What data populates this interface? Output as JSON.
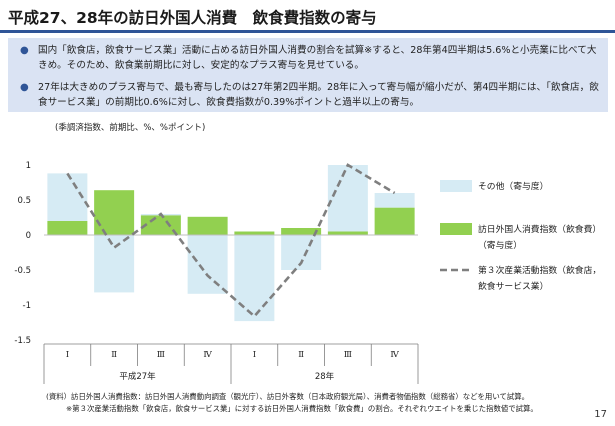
{
  "slide": {
    "title": "平成27、28年の訪日外国人消費　飲食費指数の寄与",
    "bullets": [
      "国内「飲食店，飲食サービス業」活動に占める訪日外国人消費の割合を試算※すると、28年第4四半期は5.6%と小売業に比べて大きめ。そのため、飲食業前期比に対し、安定的なプラス寄与を見せている。",
      "27年は大きめのプラス寄与で、最も寄与したのは27年第2四半期。28年に入って寄与幅が縮小だが、第4四半期には、「飲食店，飲食サービス業」の前期比0.6%に対し、飲食費指数が0.39%ポイントと過半以上の寄与。"
    ],
    "notes": [
      "(資料）訪日外国人消費指数：訪日外国人消費動向調査（観光庁）、訪日外客数（日本政府観光局）、消費者物価指数（総務省）などを用いて試算。",
      "※第３次産業活動指数「飲食店，飲食サービス業」に対する訪日外国人消費指数「飲食費」の割合。それぞれウエイトを乗じた指数値で試算。"
    ],
    "page_number": "17"
  },
  "chart_data": {
    "type": "bar",
    "unit_label": "(季調済指数、前期比、%、%ポイント)",
    "categories": [
      "Ⅰ",
      "Ⅱ",
      "Ⅲ",
      "Ⅳ",
      "Ⅰ",
      "Ⅱ",
      "Ⅲ",
      "Ⅳ"
    ],
    "year_labels": [
      {
        "label": "平成27年",
        "start": 0,
        "end": 3
      },
      {
        "label": "28年",
        "start": 4,
        "end": 7
      }
    ],
    "ylim": [
      -1.5,
      1.0
    ],
    "yticks": [
      "1",
      "0.5",
      "0",
      "-0.5",
      "-1",
      "-1.5"
    ],
    "ytick_values": [
      1,
      0.5,
      0,
      -0.5,
      -1,
      -1.5
    ],
    "series": [
      {
        "name": "訪日外国人消費指数（飲食費）（寄与度）",
        "kind": "bar",
        "color": "#92d050",
        "values": [
          0.2,
          0.64,
          0.28,
          0.26,
          0.05,
          0.1,
          0.05,
          0.39
        ]
      },
      {
        "name": "その他（寄与度）",
        "kind": "bar-stack",
        "color": "#d6ebf4",
        "values": [
          0.68,
          -0.82,
          0.02,
          -0.84,
          -1.23,
          -0.5,
          0.95,
          0.21
        ]
      },
      {
        "name": "第３次産業活動指数（飲食店，飲食サービス業）",
        "kind": "line",
        "color": "#7f7f7f",
        "values": [
          0.88,
          -0.18,
          0.3,
          -0.58,
          -1.16,
          -0.4,
          1.0,
          0.6
        ]
      }
    ],
    "legend": [
      {
        "key": "other",
        "label_lines": [
          "その他（寄与度）"
        ],
        "color": "#d6ebf4"
      },
      {
        "key": "inbound",
        "label_lines": [
          "訪日外国人消費指数（飲食費）",
          "（寄与度）"
        ],
        "color": "#92d050"
      },
      {
        "key": "tertiary",
        "label_lines": [
          "第３次産業活動指数（飲食店，",
          "飲食サービス業）"
        ],
        "color": "#7f7f7f"
      }
    ],
    "legend_position": "right",
    "grid": false
  }
}
